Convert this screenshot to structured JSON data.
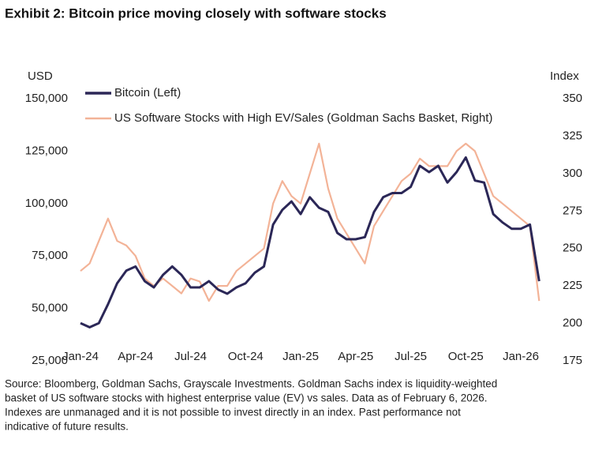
{
  "chart_data": {
    "type": "line",
    "title": "Exhibit 2: Bitcoin price moving closely with software stocks",
    "ylabel": "USD",
    "y2label": "Index",
    "categories": [
      "Jan-24",
      null,
      null,
      null,
      null,
      null,
      "Apr-24",
      null,
      null,
      null,
      null,
      null,
      "Jul-24",
      null,
      null,
      null,
      null,
      null,
      "Oct-24",
      null,
      null,
      null,
      null,
      null,
      "Jan-25",
      null,
      null,
      null,
      null,
      null,
      "Apr-25",
      null,
      null,
      null,
      null,
      null,
      "Jul-25",
      null,
      null,
      null,
      null,
      null,
      "Oct-25",
      null,
      null,
      null,
      null,
      null,
      "Jan-26",
      null,
      null
    ],
    "series": [
      {
        "name": "Bitcoin (Left)",
        "color": "#2b2757",
        "axis": "y",
        "values": [
          43000,
          41000,
          43000,
          52000,
          62000,
          68000,
          70000,
          63000,
          60000,
          66000,
          70000,
          66000,
          60000,
          60000,
          63000,
          59000,
          57000,
          60000,
          62000,
          67000,
          70000,
          90000,
          97000,
          101000,
          95000,
          103000,
          98000,
          96000,
          86000,
          83000,
          83000,
          84000,
          96000,
          103000,
          105000,
          105000,
          108000,
          118000,
          115000,
          118000,
          110000,
          115000,
          122000,
          111000,
          110000,
          95000,
          91000,
          88000,
          88000,
          90000,
          63000
        ]
      },
      {
        "name": "US Software Stocks with High EV/Sales (Goldman Sachs Basket, Right)",
        "color": "#f3b397",
        "axis": "y2",
        "values": [
          235,
          240,
          255,
          270,
          255,
          252,
          245,
          230,
          225,
          230,
          225,
          220,
          230,
          228,
          215,
          225,
          225,
          235,
          240,
          245,
          250,
          280,
          295,
          285,
          280,
          300,
          320,
          290,
          270,
          260,
          250,
          240,
          265,
          275,
          285,
          295,
          300,
          310,
          305,
          305,
          305,
          315,
          320,
          315,
          300,
          285,
          280,
          275,
          270,
          265,
          215
        ]
      }
    ],
    "ylim": [
      25000,
      150000
    ],
    "yticks": [
      {
        "value": 25000,
        "label": "25,000"
      },
      {
        "value": 50000,
        "label": "50,000"
      },
      {
        "value": 75000,
        "label": "75,000"
      },
      {
        "value": 100000,
        "label": "100,000"
      },
      {
        "value": 125000,
        "label": "125,000"
      },
      {
        "value": 150000,
        "label": "150,000"
      }
    ],
    "y2lim": [
      175,
      350
    ],
    "y2ticks": [
      175,
      200,
      225,
      250,
      275,
      300,
      325,
      350
    ],
    "grid": false,
    "legend": "top-left",
    "source": [
      "Source: Bloomberg, Goldman Sachs, Grayscale Investments. Goldman Sachs index is liquidity-weighted",
      "basket of US software stocks with highest enterprise value (EV) vs sales. Data as of February 6, 2026.",
      "Indexes are unmanaged and it is not possible to invest directly in an index. Past performance not",
      "indicative of future results."
    ]
  }
}
